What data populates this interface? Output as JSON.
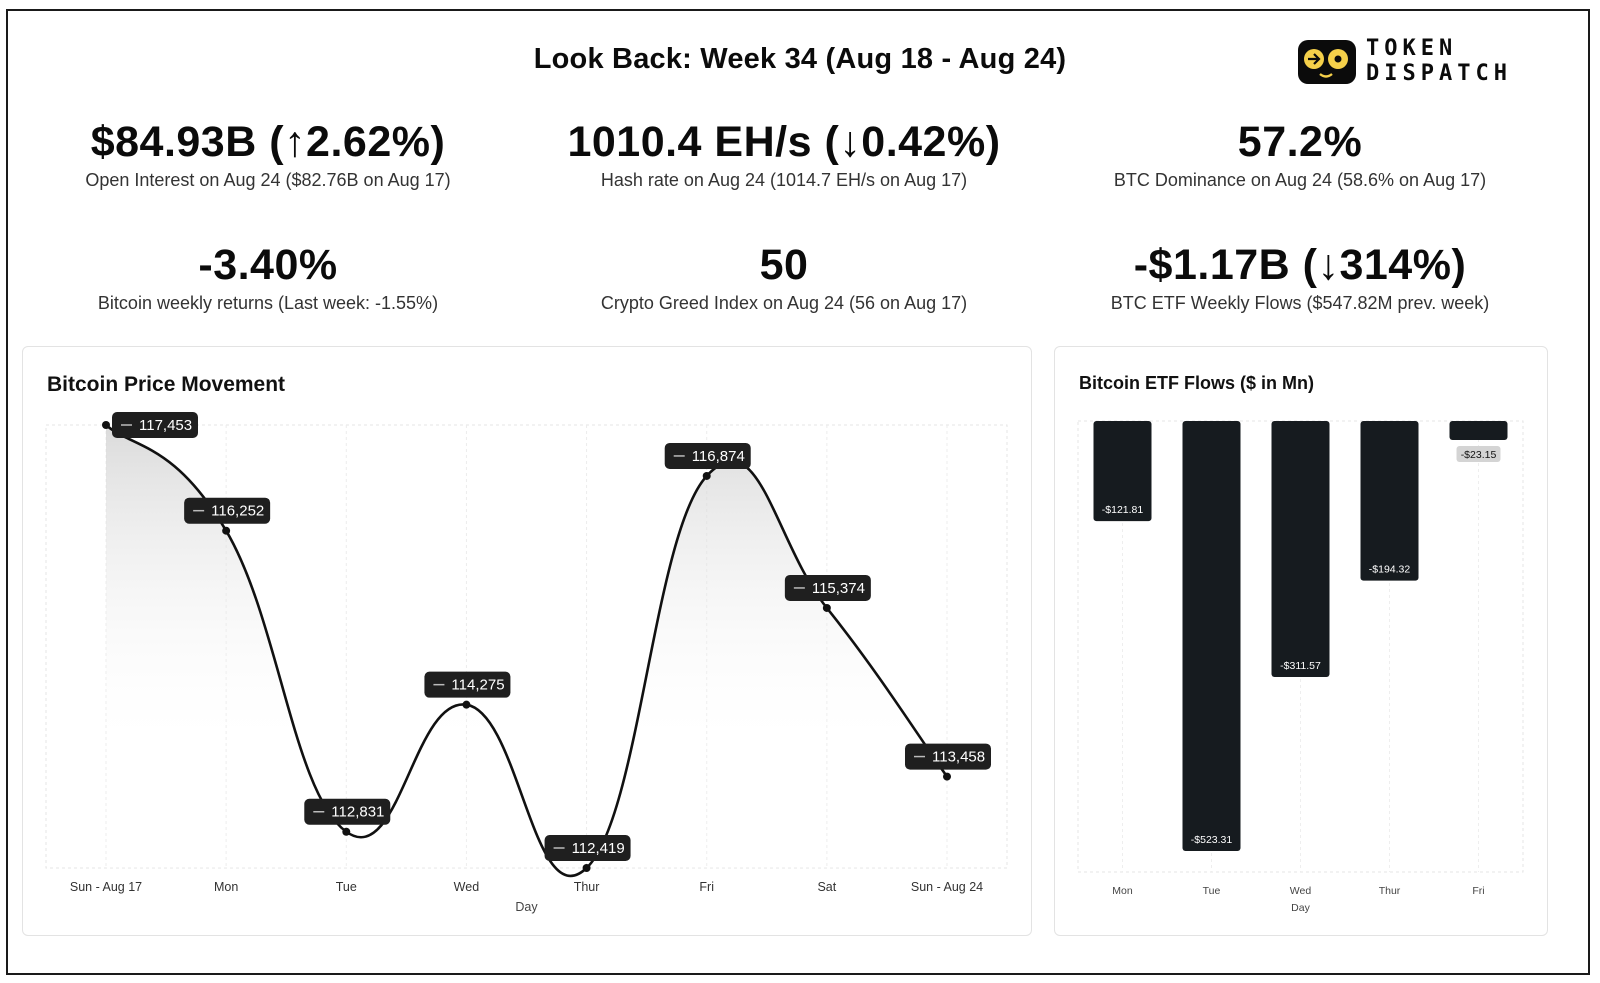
{
  "header": {
    "title": "Look Back: Week 34 (Aug 18 - Aug 24)",
    "logo_text_line1": "TOKEN",
    "logo_text_line2": "DISPATCH"
  },
  "stats": [
    {
      "value": "$84.93B (↑2.62%)",
      "label": "Open Interest on Aug 24 ($82.76B on Aug 17)"
    },
    {
      "value": "1010.4 EH/s (↓0.42%)",
      "label": "Hash rate on Aug 24 (1014.7 EH/s on Aug 17)"
    },
    {
      "value": "57.2%",
      "label": "BTC Dominance on Aug 24 (58.6% on Aug 17)"
    },
    {
      "value": "-3.40%",
      "label": "Bitcoin weekly returns (Last week: -1.55%)"
    },
    {
      "value": "50",
      "label": "Crypto Greed Index on Aug 24 (56 on Aug 17)"
    },
    {
      "value": "-$1.17B (↓314%)",
      "label": "BTC ETF Weekly Flows ($547.82M prev. week)"
    }
  ],
  "chart_data": [
    {
      "type": "area",
      "title": "Bitcoin Price Movement",
      "xlabel": "Day",
      "ylabel": "",
      "categories": [
        "Sun - Aug 17",
        "Mon",
        "Tue",
        "Wed",
        "Thur",
        "Fri",
        "Sat",
        "Sun - Aug 24"
      ],
      "values": [
        117453,
        116252,
        112831,
        114275,
        112419,
        116874,
        115374,
        113458
      ],
      "data_labels": [
        "117,453",
        "116,252",
        "112,831",
        "114,275",
        "112,419",
        "116,874",
        "115,374",
        "113,458"
      ],
      "ylim": [
        112419,
        117453
      ],
      "grid": true,
      "line_color": "#111111"
    },
    {
      "type": "bar",
      "title": "Bitcoin ETF Flows ($ in Mn)",
      "xlabel": "Day",
      "ylabel": "",
      "categories": [
        "Mon",
        "Tue",
        "Wed",
        "Thur",
        "Fri"
      ],
      "values": [
        -121.81,
        -523.31,
        -311.57,
        -194.32,
        -23.15
      ],
      "data_labels": [
        "-$121.81",
        "-$523.31",
        "-$311.57",
        "-$194.32",
        "-$23.15"
      ],
      "ylim": [
        -523.31,
        0
      ],
      "grid": true,
      "bar_color": "#161b1f"
    }
  ]
}
